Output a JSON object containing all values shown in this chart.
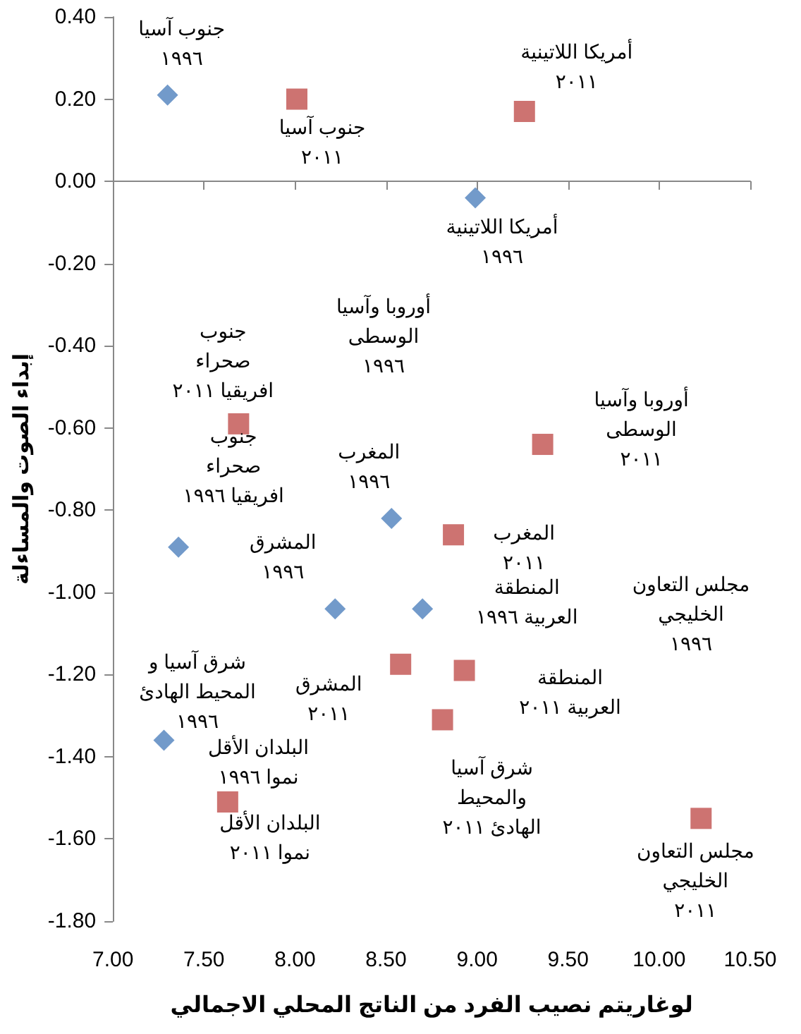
{
  "chart_data": {
    "type": "scatter",
    "xlabel": "لوغاريتم نصيب الفرد من الناتج المحلي الاجمالي",
    "ylabel": "إبداء الصوت والمساءلة",
    "xlim": [
      7,
      10.5
    ],
    "xticks": [
      {
        "value": 7,
        "label": "7.00"
      },
      {
        "value": 7.5,
        "label": "7.50"
      },
      {
        "value": 8,
        "label": "8.00"
      },
      {
        "value": 8.5,
        "label": "8.50"
      },
      {
        "value": 9,
        "label": "9.00"
      },
      {
        "value": 9.5,
        "label": "9.50"
      },
      {
        "value": 10,
        "label": "10.00"
      },
      {
        "value": 10.5,
        "label": "10.50"
      }
    ],
    "ylim": [
      -1.8,
      0.4
    ],
    "yticks": [
      {
        "value": -1.8,
        "label": "-1.80"
      },
      {
        "value": -1.6,
        "label": "-1.60"
      },
      {
        "value": -1.4,
        "label": "-1.40"
      },
      {
        "value": -1.2,
        "label": "-1.20"
      },
      {
        "value": -1,
        "label": "-1.00"
      },
      {
        "value": -0.8,
        "label": "-0.80"
      },
      {
        "value": -0.6,
        "label": "-0.60"
      },
      {
        "value": -0.4,
        "label": "-0.40"
      },
      {
        "value": -0.2,
        "label": "-0.20"
      },
      {
        "value": 0,
        "label": "0.00"
      },
      {
        "value": 0.2,
        "label": "0.20"
      },
      {
        "value": 0.4,
        "label": "0.40"
      }
    ],
    "series": [
      {
        "color": "#4f81bd",
        "marker": "diamond",
        "x": [
          7.3,
          8.99,
          8.53,
          7.36,
          8.22,
          8.7,
          7.28
        ],
        "values": [
          0.21,
          -0.04,
          -0.82,
          -0.89,
          -1.04,
          -1.04,
          -1.36
        ]
      },
      {
        "color": "#c0504d",
        "marker": "square",
        "x": [
          8.01,
          9.26,
          7.69,
          9.36,
          8.87,
          8.58,
          8.93,
          8.81,
          7.63,
          10.23
        ],
        "values": [
          0.2,
          0.17,
          -0.59,
          -0.64,
          -0.86,
          -1.175,
          -1.19,
          -1.31,
          -1.51,
          -1.55
        ]
      }
    ],
    "annotations": [
      {
        "text": "جنوب آسيا\n١٩٩٦",
        "x": 7.3,
        "y": 0.21
      },
      {
        "text": "جنوب آسيا\n٢٠١١",
        "x": 8.01,
        "y": 0.2
      },
      {
        "text": "أمريكا اللاتينية\n٢٠١١",
        "x": 9.26,
        "y": 0.17
      },
      {
        "text": "أمريكا اللاتينية\n١٩٩٦",
        "x": 8.99,
        "y": -0.04
      },
      "أوروبا وآسيا\nالوسطى\n١٩٩٦",
      {
        "text": "جنوب\nصحراء\nافريقيا ٢٠١١",
        "x": 7.69,
        "y": -0.59
      },
      {
        "text": "جنوب\nصحراء\nافريقيا ١٩٩٦",
        "x": 7.36,
        "y": -0.89
      },
      {
        "text": "أوروبا وآسيا\nالوسطى\n٢٠١١",
        "x": 9.36,
        "y": -0.64
      },
      {
        "text": "المغرب\n١٩٩٦",
        "x": 8.53,
        "y": -0.82
      },
      {
        "text": "المغرب\n٢٠١١",
        "x": 8.87,
        "y": -0.86
      },
      {
        "text": "المشرق\n١٩٩٦",
        "x": 8.22,
        "y": -1.04
      },
      {
        "text": "المنطقة\nالعربية ١٩٩٦",
        "x": 8.7,
        "y": -1.04
      },
      "مجلس التعاون\nالخليجي\n١٩٩٦",
      "شرق آسيا و\nالمحيط الهادئ\n١٩٩٦",
      {
        "text": "المشرق\n٢٠١١",
        "x": 8.58,
        "y": -1.175
      },
      {
        "text": "المنطقة\nالعربية ٢٠١١",
        "x": 8.93,
        "y": -1.19
      },
      {
        "text": "البلدان الأقل\nنموا ١٩٩٦",
        "x": 7.28,
        "y": -1.36
      },
      {
        "text": "شرق آسيا\nوالمحيط\nالهادئ ٢٠١١",
        "x": 8.81,
        "y": -1.31
      },
      {
        "text": "البلدان الأقل\nنموا ٢٠١١",
        "x": 7.63,
        "y": -1.51
      },
      {
        "text": "مجلس التعاون\nالخليجي\n٢٠١١",
        "x": 10.23,
        "y": -1.55
      }
    ]
  }
}
